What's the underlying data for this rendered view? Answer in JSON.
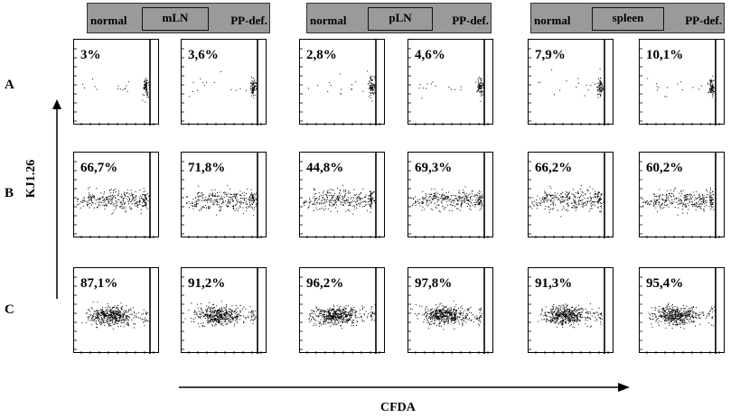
{
  "headers": [
    {
      "normal": "normal",
      "tissue": "mLN",
      "deficient": "PP-def."
    },
    {
      "normal": "normal",
      "tissue": "pLN",
      "deficient": "PP-def."
    },
    {
      "normal": "normal",
      "tissue": "spleen",
      "deficient": "PP-def."
    }
  ],
  "rows": [
    {
      "label": "A",
      "percentages": [
        "3%",
        "3,6%",
        "2,8%",
        "4,6%",
        "7,9%",
        "10,1%"
      ]
    },
    {
      "label": "B",
      "percentages": [
        "66,7%",
        "71,8%",
        "44,8%",
        "69,3%",
        "66,2%",
        "60,2%"
      ]
    },
    {
      "label": "C",
      "percentages": [
        "87,1%",
        "91,2%",
        "96,2%",
        "97,8%",
        "91,3%",
        "95,4%"
      ]
    }
  ],
  "axes": {
    "y": "KJ1.26",
    "x": "CFDA"
  }
}
